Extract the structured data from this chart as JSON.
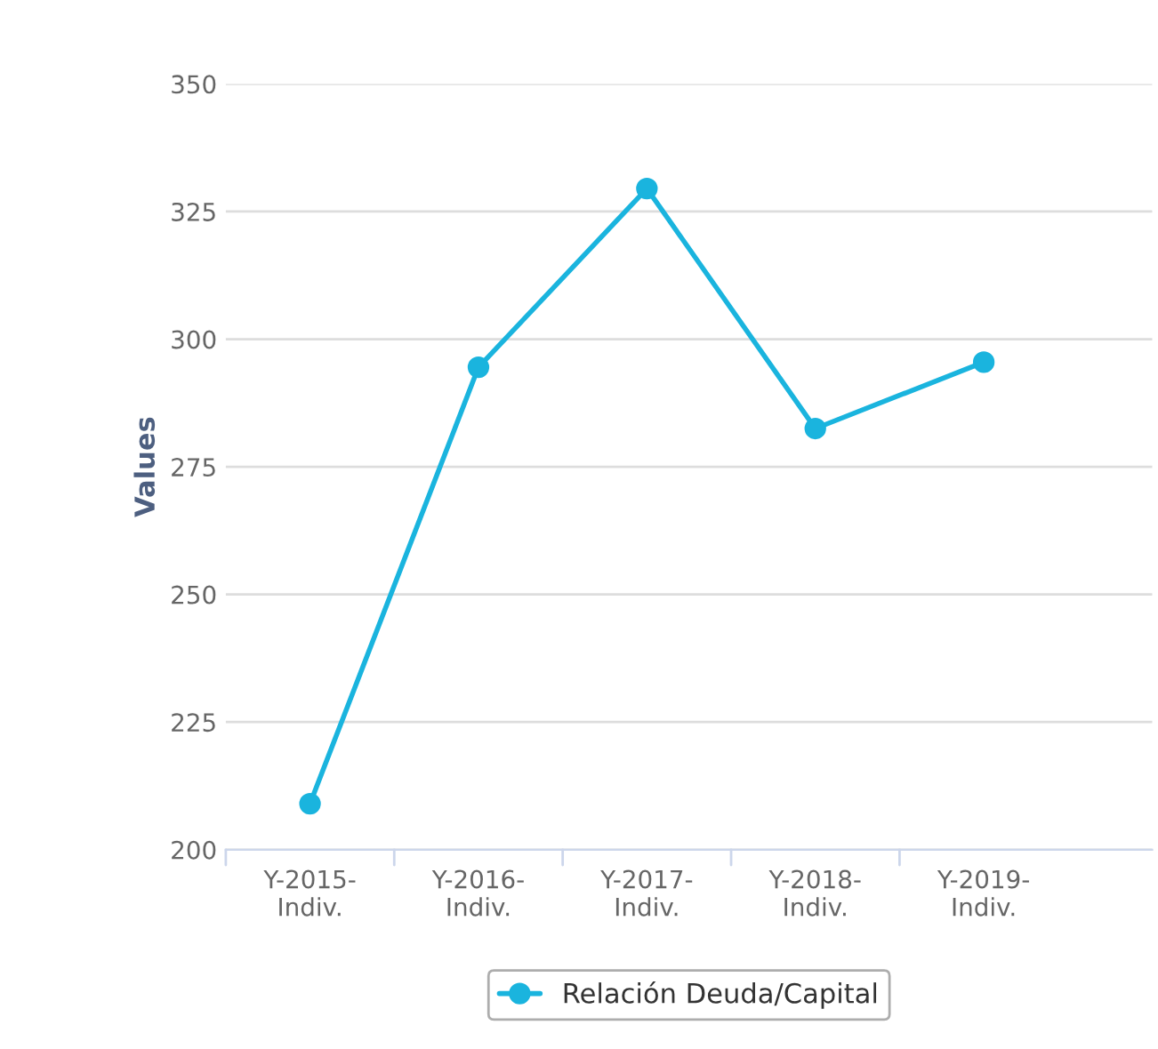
{
  "chart_data": {
    "type": "line",
    "ylabel": "Values",
    "categories": [
      "Y-2015-Indiv.",
      "Y-2016-Indiv.",
      "Y-2017-Indiv.",
      "Y-2018-Indiv.",
      "Y-2019-Indiv."
    ],
    "series": [
      {
        "name": "Relación Deuda/Capital",
        "color": "#1ab4de",
        "values": [
          209,
          294.5,
          329.5,
          282.5,
          295.5
        ]
      }
    ],
    "ylim": [
      200,
      350
    ],
    "yticks": [
      200,
      225,
      250,
      275,
      300,
      325,
      350
    ],
    "grid": "y",
    "legend": "bottom",
    "marker": "circle",
    "line_style": "solid"
  }
}
